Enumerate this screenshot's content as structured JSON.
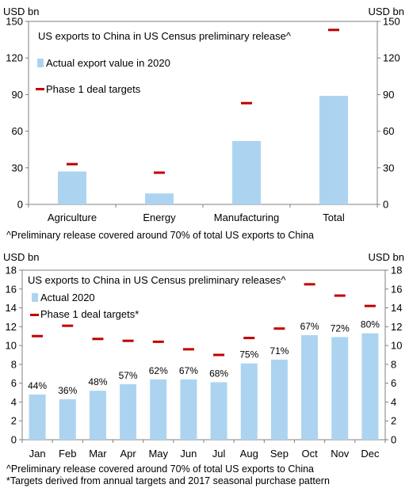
{
  "colors": {
    "bar": "#acd4f0",
    "target": "#c00000",
    "axis": "#808080"
  },
  "chart_data": [
    {
      "type": "bar",
      "title": "US exports to China in US Census preliminary release^",
      "categories": [
        "Agriculture",
        "Energy",
        "Manufacturing",
        "Total"
      ],
      "series": [
        {
          "name": "Actual export value in 2020",
          "kind": "bar",
          "values": [
            27,
            9,
            52,
            89
          ]
        },
        {
          "name": "Phase 1 deal targets",
          "kind": "marker",
          "values": [
            33,
            26,
            83,
            143
          ]
        }
      ],
      "ylabel_left": "USD bn",
      "ylabel_right": "USD bn",
      "ylim": [
        0,
        150
      ],
      "yticks": [
        "0",
        "30",
        "60",
        "90",
        "120",
        "150"
      ],
      "footnotes": [
        "^Preliminary release covered around 70% of total US exports to China"
      ]
    },
    {
      "type": "bar",
      "title": "US exports to China in US Census preliminary releases^",
      "categories": [
        "Jan",
        "Feb",
        "Mar",
        "Apr",
        "May",
        "Jun",
        "Jul",
        "Aug",
        "Sep",
        "Oct",
        "Nov",
        "Dec"
      ],
      "series": [
        {
          "name": "Actual 2020",
          "kind": "bar",
          "values": [
            4.8,
            4.3,
            5.2,
            5.9,
            6.4,
            6.4,
            6.1,
            8.1,
            8.5,
            11.1,
            10.9,
            11.3
          ]
        },
        {
          "name": "Phase 1 deal targets*",
          "kind": "marker",
          "values": [
            11.0,
            12.1,
            10.7,
            10.5,
            10.4,
            9.6,
            9.0,
            10.8,
            11.8,
            16.5,
            15.3,
            14.2
          ]
        }
      ],
      "bar_labels": [
        "44%",
        "36%",
        "48%",
        "57%",
        "62%",
        "67%",
        "68%",
        "75%",
        "71%",
        "67%",
        "72%",
        "80%"
      ],
      "ylabel_left": "USD bn",
      "ylabel_right": "USD bn",
      "ylim": [
        0,
        18
      ],
      "yticks": [
        "0",
        "2",
        "4",
        "6",
        "8",
        "10",
        "12",
        "14",
        "16",
        "18"
      ],
      "footnotes": [
        "^Preliminary release covered around 70% of total US exports to China",
        "*Targets derived from annual targets and 2017 seasonal purchase pattern"
      ]
    }
  ]
}
